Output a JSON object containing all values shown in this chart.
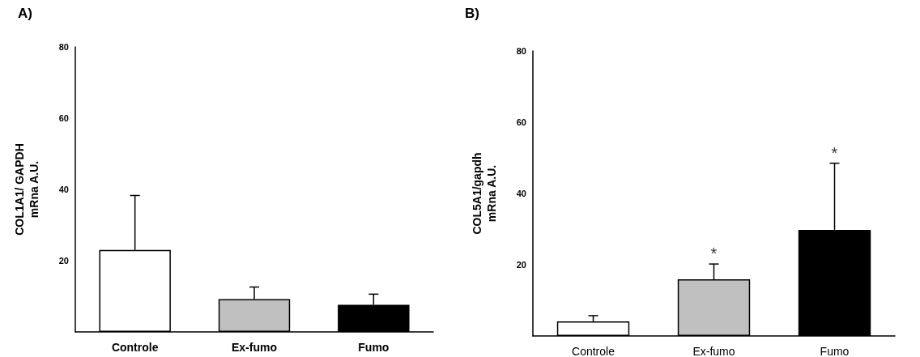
{
  "chart_data": [
    {
      "type": "bar",
      "title": "A)",
      "ylabel": "COL1A1/ GAPDH\nmRna A.U.",
      "categories": [
        "Controle",
        "Ex-fumo",
        "Fumo"
      ],
      "values": [
        23,
        9.2,
        7.6
      ],
      "colors": [
        "#ffffff",
        "#c0c0c0",
        "#000000"
      ],
      "errors": [
        [
          23,
          38.3
        ],
        [
          9.2,
          12.6
        ],
        [
          7.6,
          10.6
        ]
      ],
      "ylim": [
        0,
        80
      ],
      "yticks": [
        20,
        40,
        60,
        80
      ],
      "grid": false
    },
    {
      "type": "bar",
      "title": "B)",
      "ylabel": "COL5A1/gapdh\nmRna A.U.",
      "categories": [
        "Controle",
        "Ex-fumo",
        "Fumo"
      ],
      "values": [
        4.1,
        15.9,
        29.8
      ],
      "colors": [
        "#ffffff",
        "#c0c0c0",
        "#000000"
      ],
      "errors": [
        [
          4.1,
          5.7
        ],
        [
          15.9,
          20.2
        ],
        [
          29.8,
          48.5
        ]
      ],
      "ylim": [
        0,
        80
      ],
      "yticks": [
        20,
        40,
        60,
        80
      ],
      "grid": false,
      "annotations": [
        {
          "text": "*",
          "x": "Ex-fumo",
          "y": 20.2
        },
        {
          "text": "*",
          "x": "Fumo",
          "y": 48.5
        }
      ]
    }
  ]
}
